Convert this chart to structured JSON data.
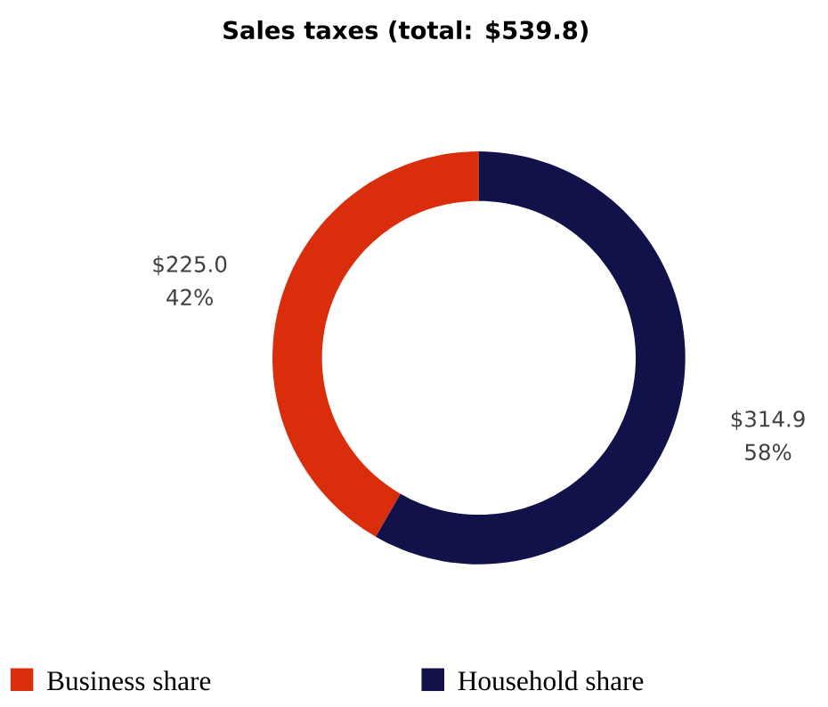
{
  "chart_data": {
    "type": "donut",
    "title": "Sales taxes (total: $539.8)",
    "categories": [
      "Business share",
      "Household share"
    ],
    "values": [
      225.0,
      314.9
    ],
    "colors": [
      "#d92d0b",
      "#12124a"
    ],
    "value_labels": [
      "$225.0 42%",
      "$314.9 58%"
    ],
    "legend": "bottom"
  }
}
